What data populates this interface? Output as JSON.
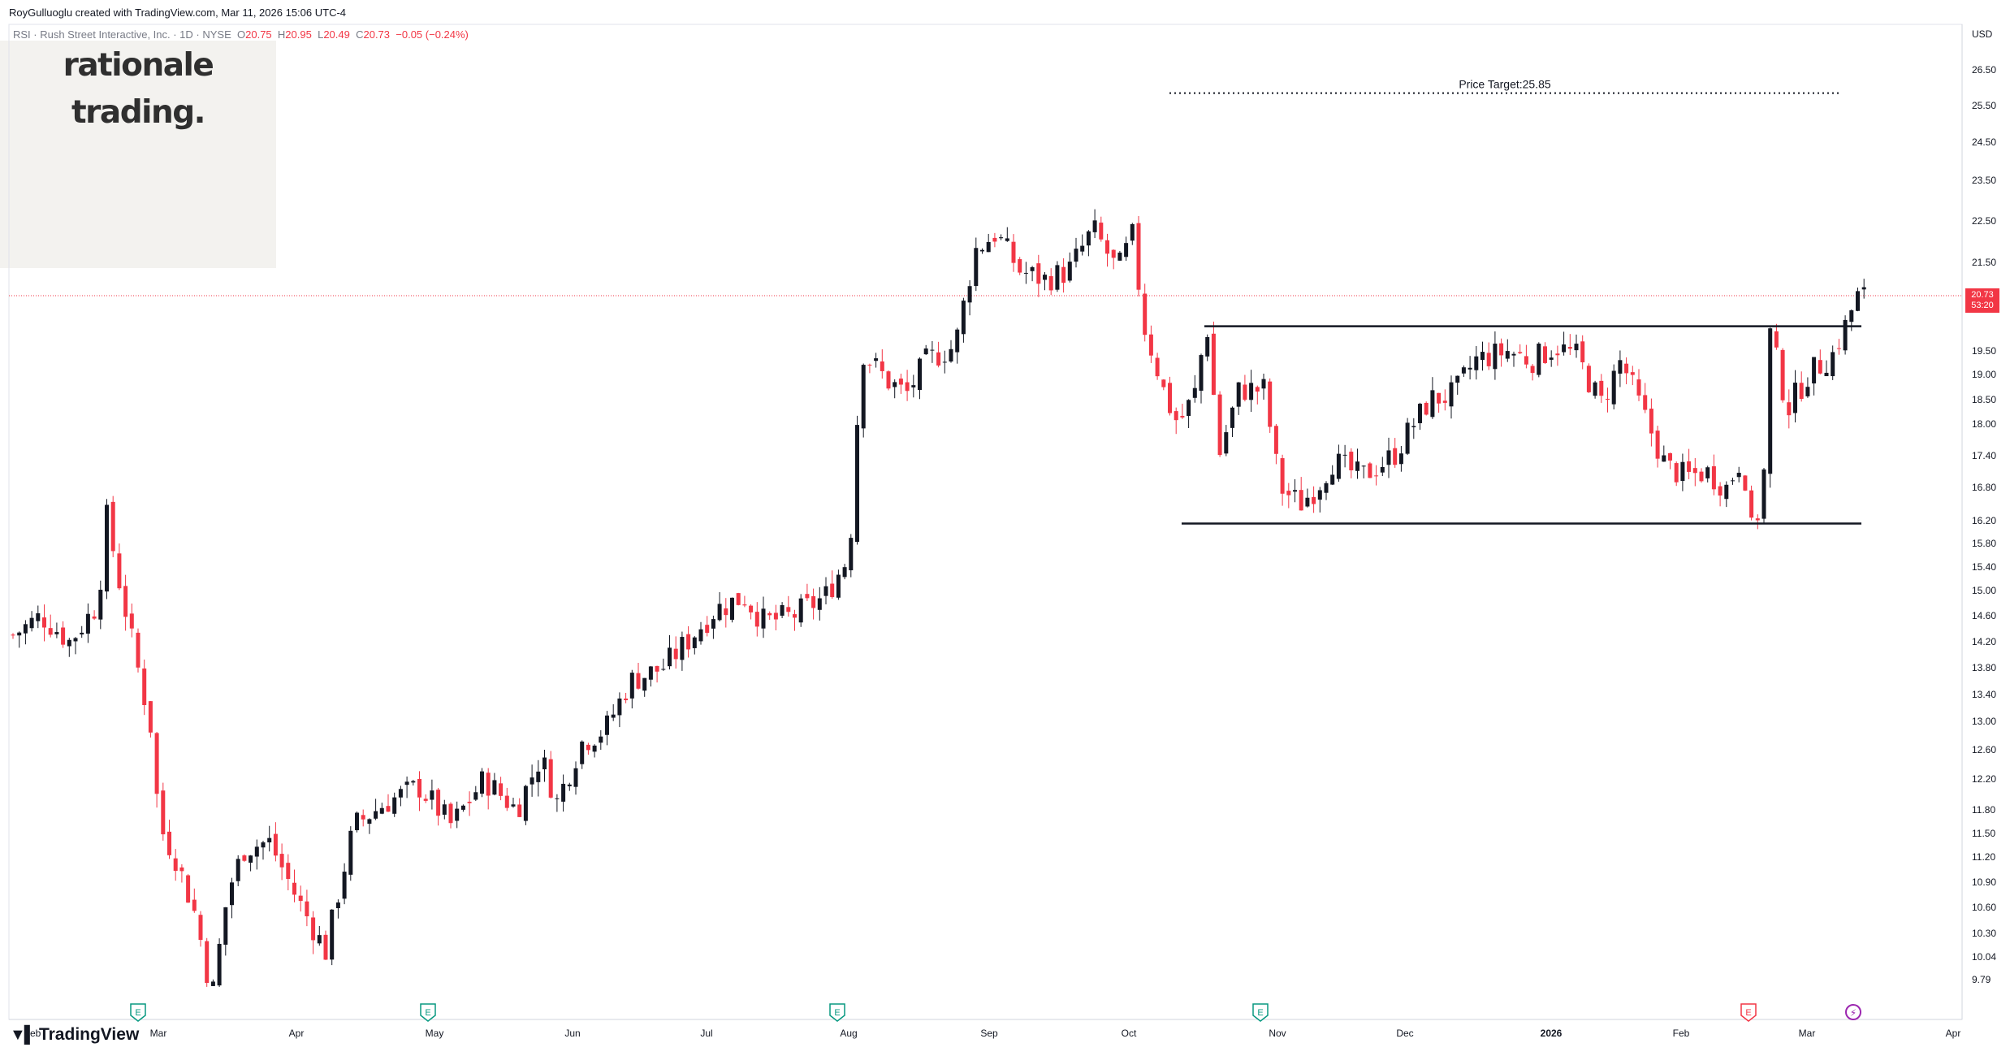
{
  "credit": {
    "author": "RoyGulluoglu",
    "text": "RoyGulluoglu created with TradingView.com, Mar 11, 2026 15:06 UTC-4"
  },
  "legend": {
    "symbol": "RSI · Rush Street Interactive, Inc. · 1D · NYSE",
    "open_label": "O",
    "open": "20.75",
    "high_label": "H",
    "high": "20.95",
    "low_label": "L",
    "low": "20.49",
    "close_label": "C",
    "close": "20.73",
    "change": "−0.05 (−0.24%)"
  },
  "brand": {
    "line1": "rationale",
    "line2": "trading."
  },
  "footer": {
    "logo_text": "TradingView"
  },
  "chart_data": {
    "type": "candlestick",
    "currency": "USD",
    "y_ticks": [
      "26.50",
      "25.50",
      "24.50",
      "23.50",
      "22.50",
      "21.50",
      "20.73",
      "19.50",
      "19.00",
      "18.50",
      "18.00",
      "17.40",
      "16.80",
      "16.20",
      "15.80",
      "15.40",
      "15.00",
      "14.60",
      "14.20",
      "13.80",
      "13.40",
      "13.00",
      "12.60",
      "12.20",
      "11.80",
      "11.50",
      "11.20",
      "10.90",
      "10.60",
      "10.30",
      "10.04",
      "9.79"
    ],
    "x_labels": [
      "Feb",
      "Mar",
      "Apr",
      "May",
      "Jun",
      "Jul",
      "Aug",
      "Sep",
      "Oct",
      "Nov",
      "Dec",
      "2026",
      "Feb",
      "Mar",
      "Apr"
    ],
    "last_price": "20.73",
    "countdown": "53:20",
    "price_target_label": "Price Target:25.85",
    "price_target": 25.85,
    "resistance": 20.05,
    "support": 16.15,
    "colors": {
      "up": "#131722",
      "down": "#f23645",
      "last_price": "#f23645"
    },
    "earnings_markers": [
      "Feb",
      "May",
      "Aug",
      "Nov"
    ],
    "earnings_marker_label": "E",
    "events": [
      {
        "x": "Feb 2026",
        "type": "earnings-upcoming"
      },
      {
        "x": "Mar 2026",
        "type": "dividend"
      }
    ]
  }
}
